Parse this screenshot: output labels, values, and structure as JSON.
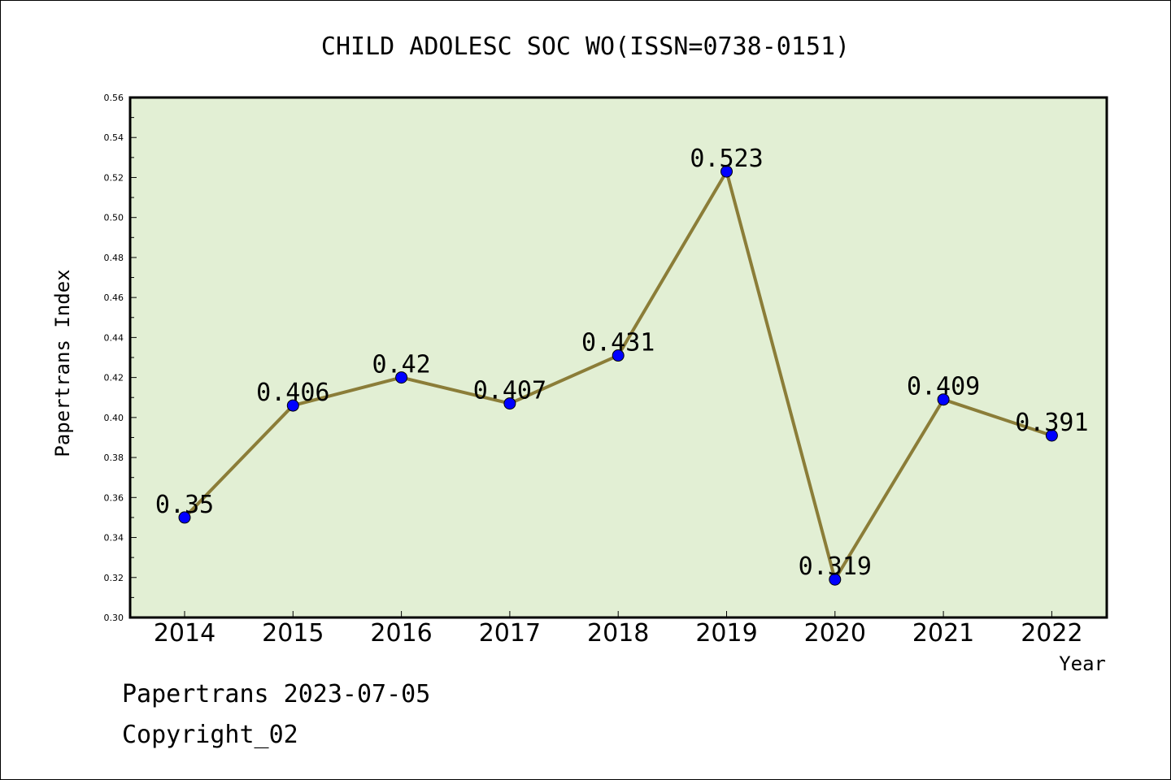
{
  "chart_data": {
    "type": "line",
    "title": "CHILD ADOLESC SOC WO(ISSN=0738-0151)",
    "xlabel": "Year",
    "ylabel": "Papertrans Index",
    "categories": [
      "2014",
      "2015",
      "2016",
      "2017",
      "2018",
      "2019",
      "2020",
      "2021",
      "2022"
    ],
    "series": [
      {
        "values": [
          0.35,
          0.406,
          0.42,
          0.407,
          0.431,
          0.523,
          0.319,
          0.409,
          0.391
        ],
        "labels": [
          "0.35",
          "0.406",
          "0.42",
          "0.407",
          "0.431",
          "0.523",
          "0.319",
          "0.409",
          "0.391"
        ]
      }
    ],
    "ylim": [
      0.3,
      0.56
    ],
    "yticks": [
      "0.30",
      "0.32",
      "0.34",
      "0.36",
      "0.38",
      "0.40",
      "0.42",
      "0.44",
      "0.46",
      "0.48",
      "0.50",
      "0.52",
      "0.54",
      "0.56"
    ],
    "grid": false,
    "colors": {
      "plot_background": "#e2efd4",
      "line": "#8b7d38",
      "marker": "#0000ff"
    }
  },
  "footer": {
    "line1": "Papertrans 2023-07-05",
    "line2": "Copyright_02"
  }
}
